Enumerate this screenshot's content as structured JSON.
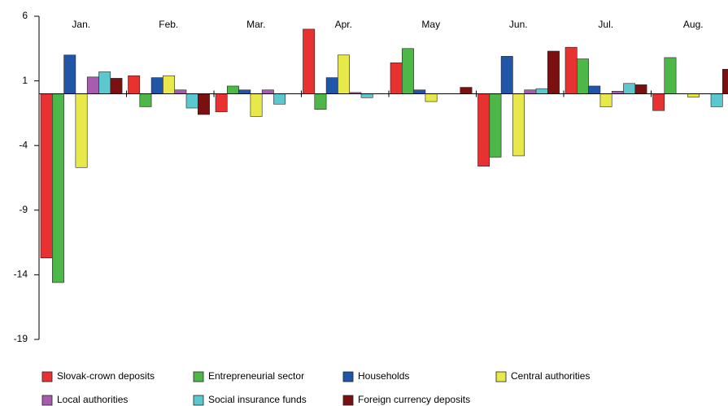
{
  "chart_data": {
    "type": "bar",
    "categories": [
      "Jan.",
      "Feb.",
      "Mar.",
      "Apr.",
      "May",
      "Jun.",
      "Jul.",
      "Aug."
    ],
    "series": [
      {
        "name": "Slovak-crown deposits",
        "color": "#e83232",
        "values": [
          -12.7,
          1.4,
          -1.4,
          5.0,
          2.4,
          -5.6,
          3.6,
          -1.3
        ]
      },
      {
        "name": "Entrepreneurial sector",
        "color": "#4db848",
        "values": [
          -14.6,
          -1.0,
          0.6,
          -1.2,
          3.5,
          -4.9,
          2.7,
          2.8
        ]
      },
      {
        "name": "Households",
        "color": "#1f56a8",
        "values": [
          3.0,
          1.25,
          0.3,
          1.25,
          0.3,
          2.9,
          0.6,
          0
        ]
      },
      {
        "name": "Central authorities",
        "color": "#e8e84a",
        "values": [
          -5.7,
          1.4,
          -1.75,
          3.0,
          -0.6,
          -4.8,
          -1.0,
          -0.25
        ]
      },
      {
        "name": "Local authorities",
        "color": "#a85cb0",
        "values": [
          1.3,
          0.3,
          0.3,
          0.1,
          0,
          0.3,
          0.2,
          0
        ]
      },
      {
        "name": "Social insurance funds",
        "color": "#5bc8d0",
        "values": [
          1.7,
          -1.1,
          -0.8,
          -0.3,
          0,
          0.4,
          0.8,
          -1.0
        ]
      },
      {
        "name": "Foreign currency deposits",
        "color": "#7a1010",
        "values": [
          1.2,
          -1.6,
          0,
          0,
          0.5,
          3.3,
          0.7,
          1.9
        ]
      }
    ],
    "ylim": [
      -19,
      6
    ],
    "yticks": [
      6,
      1,
      -4,
      -9,
      -14,
      -19
    ],
    "legend": "bottom"
  }
}
